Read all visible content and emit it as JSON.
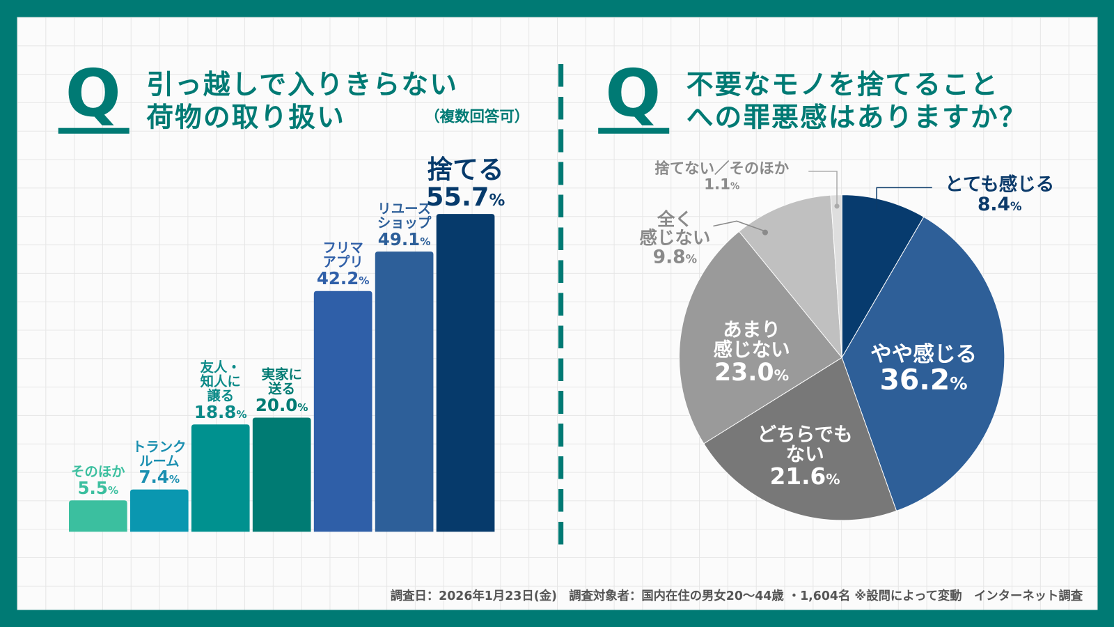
{
  "left": {
    "q": "Q",
    "title_line1": "引っ越しで入りきらない",
    "title_line2": "荷物の取り扱い",
    "note": "（複数回答可）"
  },
  "right": {
    "q": "Q",
    "title_line1": "不要なモノを捨てること",
    "title_line2": "への罪悪感はありますか？"
  },
  "footer": "調査日：2026年1月23日(金)　調査対象者：国内在住の男女20〜44歳 ・1,604名 ※設問によって変動　インターネット調査",
  "chart_data": [
    {
      "type": "bar",
      "categories": [
        "そのほか",
        "トランクルーム",
        "友人・知人に譲る",
        "実家に送る",
        "フリマアプリ",
        "リユースショップ",
        "捨てる"
      ],
      "labels": [
        "そのほか",
        "トランク\nルーム",
        "友人・\n知人に\n譲る",
        "実家に\n送る",
        "フリマ\nアプリ",
        "リユース\nショップ",
        "捨てる"
      ],
      "values": [
        5.5,
        7.4,
        18.8,
        20.0,
        42.2,
        49.1,
        55.7
      ],
      "value_labels": [
        "5.5",
        "7.4",
        "18.8",
        "20.0",
        "42.2",
        "49.1",
        "55.7"
      ],
      "unit": "%",
      "colors": [
        "#3bbf9f",
        "#0a97b0",
        "#00918f",
        "#007b73",
        "#2f5fa8",
        "#2d5f99",
        "#063a6b"
      ],
      "label_colors": [
        "#3bbf9f",
        "#1a8fb0",
        "#0b8a88",
        "#007b73",
        "#2f5fa8",
        "#2d5f99",
        "#063a6b"
      ],
      "grid": false
    },
    {
      "type": "pie",
      "categories": [
        "とても感じる",
        "やや感じる",
        "どちらでもない",
        "あまり感じない",
        "全く感じない",
        "捨てない／そのほか"
      ],
      "labels": [
        "とても感じる",
        "やや感じる",
        "どちらでも\nない",
        "あまり\n感じない",
        "全く\n感じない",
        "捨てない／そのほか"
      ],
      "values": [
        8.4,
        36.2,
        21.6,
        23.0,
        9.8,
        1.1
      ],
      "value_labels": [
        "8.4",
        "36.2",
        "21.6",
        "23.0",
        "9.8",
        "1.1"
      ],
      "unit": "%",
      "colors": [
        "#073b6e",
        "#2e5f98",
        "#787878",
        "#9a9a9a",
        "#c0c0c0",
        "#dedede"
      ],
      "label_colors": [
        "#0b3a6a",
        "#ffffff",
        "#ffffff",
        "#ffffff",
        "#8a8a8a",
        "#8a8a8a"
      ],
      "start": "top",
      "direction": "clockwise"
    }
  ]
}
